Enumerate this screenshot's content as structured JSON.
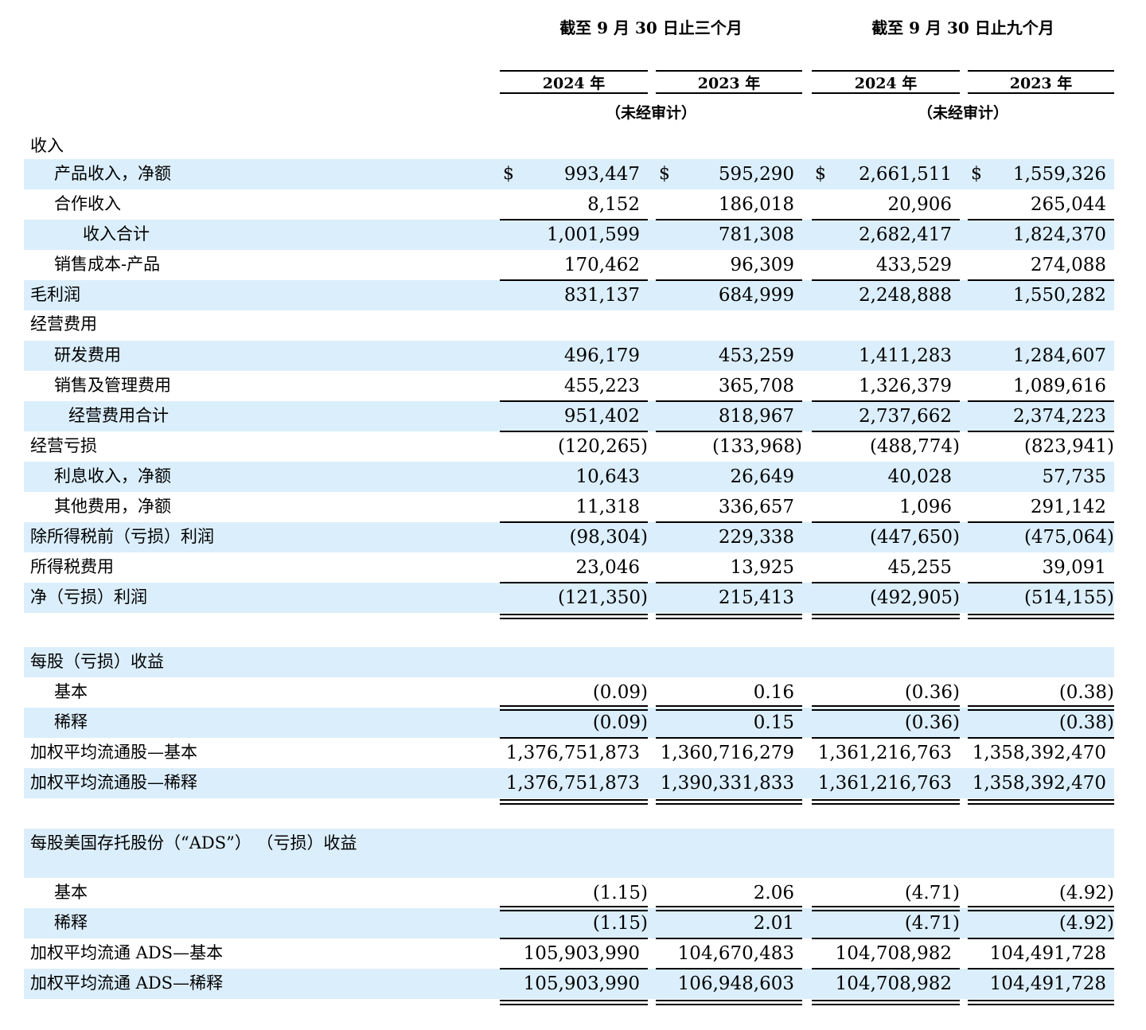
{
  "header": {
    "periods": [
      "截至 9 月 30 日止三个月",
      "截至 9 月 30 日止九个月"
    ],
    "years": [
      "2024 年",
      "2023 年",
      "2024 年",
      "2023 年"
    ],
    "audit": [
      "（未经审计）",
      "（未经审计）"
    ]
  },
  "currency_symbol": "$",
  "rows": [
    {
      "label": "收入",
      "indent": 0,
      "shade": false,
      "values": []
    },
    {
      "label": "产品收入，净额",
      "indent": 1,
      "shade": true,
      "dollar": true,
      "values": [
        "993,447",
        "595,290",
        "2,661,511",
        "1,559,326"
      ]
    },
    {
      "label": "合作收入",
      "indent": 1,
      "shade": false,
      "values": [
        "8,152",
        "186,018",
        "20,906",
        "265,044"
      ]
    },
    {
      "label": "收入合计",
      "indent": 3,
      "shade": true,
      "rule_above": "single",
      "values": [
        "1,001,599",
        "781,308",
        "2,682,417",
        "1,824,370"
      ]
    },
    {
      "label": "销售成本-产品",
      "indent": 1,
      "shade": false,
      "values": [
        "170,462",
        "96,309",
        "433,529",
        "274,088"
      ]
    },
    {
      "label": "毛利润",
      "indent": 0,
      "shade": true,
      "rule_above": "single",
      "values": [
        "831,137",
        "684,999",
        "2,248,888",
        "1,550,282"
      ]
    },
    {
      "label": "经营费用",
      "indent": 0,
      "shade": false,
      "values": []
    },
    {
      "label": "研发费用",
      "indent": 1,
      "shade": true,
      "values": [
        "496,179",
        "453,259",
        "1,411,283",
        "1,284,607"
      ]
    },
    {
      "label": "销售及管理费用",
      "indent": 1,
      "shade": false,
      "values": [
        "455,223",
        "365,708",
        "1,326,379",
        "1,089,616"
      ]
    },
    {
      "label": "经营费用合计",
      "indent": 2,
      "shade": true,
      "rule_above": "single",
      "values": [
        "951,402",
        "818,967",
        "2,737,662",
        "2,374,223"
      ]
    },
    {
      "label": "经营亏损",
      "indent": 0,
      "shade": false,
      "rule_above": "single",
      "values": [
        "(120,265)",
        "(133,968)",
        "(488,774)",
        "(823,941)"
      ]
    },
    {
      "label": "利息收入，净额",
      "indent": 1,
      "shade": true,
      "values": [
        "10,643",
        "26,649",
        "40,028",
        "57,735"
      ]
    },
    {
      "label": "其他费用，净额",
      "indent": 1,
      "shade": false,
      "values": [
        "11,318",
        "336,657",
        "1,096",
        "291,142"
      ]
    },
    {
      "label": "除所得税前（亏损）利润",
      "indent": 0,
      "shade": true,
      "rule_above": "single",
      "values": [
        "(98,304)",
        "229,338",
        "(447,650)",
        "(475,064)"
      ]
    },
    {
      "label": "所得税费用",
      "indent": 0,
      "shade": false,
      "values": [
        "23,046",
        "13,925",
        "45,255",
        "39,091"
      ]
    },
    {
      "label": "净（亏损）利润",
      "indent": 0,
      "shade": true,
      "rule_above": "single",
      "rule_below": "double",
      "values": [
        "(121,350)",
        "215,413",
        "(492,905)",
        "(514,155)"
      ]
    },
    {
      "label": "每股（亏损）收益",
      "indent": 0,
      "shade": true,
      "values": []
    },
    {
      "label": "基本",
      "indent": 1,
      "shade": false,
      "values": [
        "(0.09)",
        "0.16",
        "(0.36)",
        "(0.38)"
      ]
    },
    {
      "label": "稀释",
      "indent": 1,
      "shade": true,
      "rule_above": "double",
      "values": [
        "(0.09)",
        "0.15",
        "(0.36)",
        "(0.38)"
      ]
    },
    {
      "label": "加权平均流通股—基本",
      "indent": 0,
      "shade": false,
      "rule_above": "single",
      "rule_below": "double",
      "values": [
        "1,376,751,873",
        "1,360,716,279",
        "1,361,216,763",
        "1,358,392,470"
      ]
    },
    {
      "label": "加权平均流通股—稀释",
      "indent": 0,
      "shade": true,
      "rule_below": "double",
      "values": [
        "1,376,751,873",
        "1,390,331,833",
        "1,361,216,763",
        "1,358,392,470"
      ]
    },
    {
      "label": "每股美国存托股份（“ADS”） （亏损）收益",
      "indent": 0,
      "shade": true,
      "values": []
    },
    {
      "label": "基本",
      "indent": 1,
      "shade": false,
      "values": [
        "(1.15)",
        "2.06",
        "(4.71)",
        "(4.92)"
      ]
    },
    {
      "label": "稀释",
      "indent": 1,
      "shade": true,
      "rule_above": "double",
      "values": [
        "(1.15)",
        "2.01",
        "(4.71)",
        "(4.92)"
      ]
    },
    {
      "label": "加权平均流通 ADS—基本",
      "indent": 0,
      "shade": false,
      "rule_above": "single",
      "values": [
        "105,903,990",
        "104,670,483",
        "104,708,982",
        "104,491,728"
      ]
    },
    {
      "label": "加权平均流通 ADS—稀释",
      "indent": 0,
      "shade": true,
      "rule_above": "single",
      "rule_below": "double",
      "values": [
        "105,903,990",
        "106,948,603",
        "104,708,982",
        "104,491,728"
      ]
    }
  ]
}
